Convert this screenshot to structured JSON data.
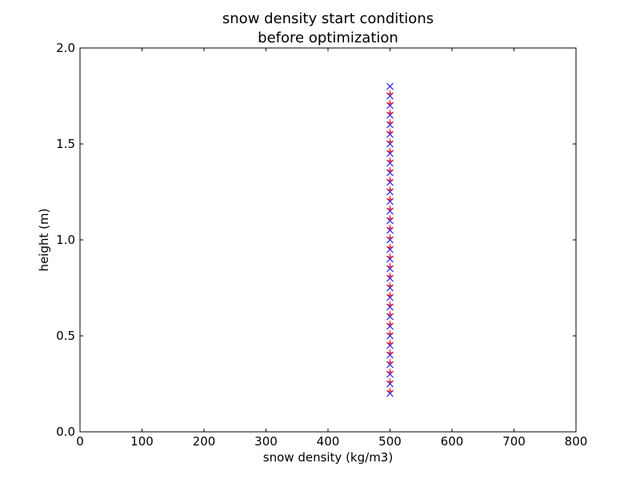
{
  "chart_data": {
    "type": "scatter",
    "title": [
      "snow density start conditions",
      "before optimization"
    ],
    "xlabel": "snow density (kg/m3)",
    "ylabel": "height (m)",
    "xlim": [
      0,
      800
    ],
    "ylim": [
      0.0,
      2.0
    ],
    "xticks": [
      "0",
      "100",
      "200",
      "300",
      "400",
      "500",
      "600",
      "700",
      "800"
    ],
    "yticks": [
      "0.0",
      "0.5",
      "1.0",
      "1.5",
      "2.0"
    ],
    "grid": false,
    "legend": "none",
    "series": [
      {
        "marker": "x",
        "color": "#0000ff",
        "x": [
          500,
          500,
          500,
          500,
          500,
          500,
          500,
          500,
          500,
          500,
          500,
          500,
          500,
          500,
          500,
          500,
          500,
          500,
          500,
          500,
          500,
          500,
          500,
          500,
          500,
          500,
          500,
          500,
          500,
          500,
          500,
          500,
          500
        ],
        "y": [
          0.2,
          0.25,
          0.3,
          0.35,
          0.4,
          0.45,
          0.5,
          0.55,
          0.6,
          0.65,
          0.7,
          0.75,
          0.8,
          0.85,
          0.9,
          0.95,
          1.0,
          1.05,
          1.1,
          1.15,
          1.2,
          1.25,
          1.3,
          1.35,
          1.4,
          1.45,
          1.5,
          1.55,
          1.6,
          1.65,
          1.7,
          1.75,
          1.8
        ]
      },
      {
        "marker": "+",
        "color": "#ff0000",
        "x": [
          500,
          500,
          500,
          500,
          500,
          500,
          500,
          500,
          500,
          500,
          500,
          500,
          500,
          500,
          500,
          500,
          500,
          500,
          500,
          500,
          500,
          500,
          500,
          500,
          500,
          500,
          500,
          500,
          500,
          500,
          500,
          500
        ],
        "y": [
          0.2125,
          0.2625,
          0.3125,
          0.3625,
          0.4125,
          0.4625,
          0.5125,
          0.5625,
          0.6125,
          0.6625,
          0.7125,
          0.7625,
          0.8125,
          0.8625,
          0.9125,
          0.9625,
          1.0125,
          1.0625,
          1.1125,
          1.1625,
          1.2125,
          1.2625,
          1.3125,
          1.3625,
          1.4125,
          1.4625,
          1.5125,
          1.5625,
          1.6125,
          1.6625,
          1.7125,
          1.7625
        ]
      }
    ]
  }
}
